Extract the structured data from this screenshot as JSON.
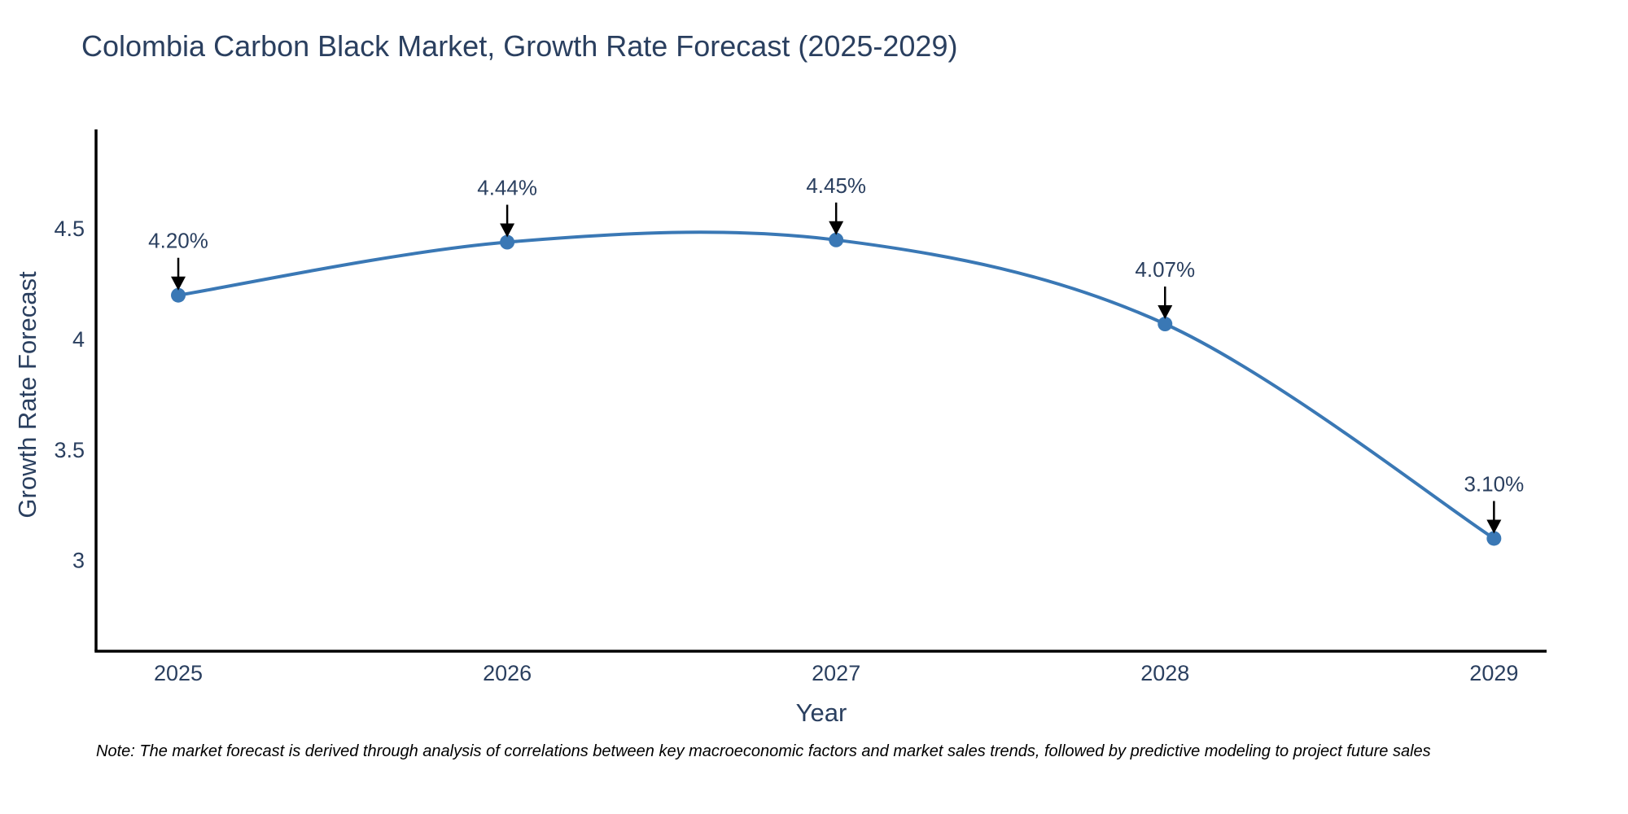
{
  "chart_data": {
    "type": "line",
    "title": "Colombia Carbon Black Market, Growth Rate Forecast (2025-2029)",
    "xlabel": "Year",
    "ylabel": "Growth Rate Forecast",
    "x": [
      2025,
      2026,
      2027,
      2028,
      2029
    ],
    "y": [
      4.2,
      4.44,
      4.45,
      4.07,
      3.1
    ],
    "point_labels": [
      "4.20%",
      "4.44%",
      "4.45%",
      "4.07%",
      "3.10%"
    ],
    "xticks": [
      "2025",
      "2026",
      "2027",
      "2028",
      "2029"
    ],
    "yticks": [
      3,
      3.5,
      4,
      4.5
    ],
    "xlim": [
      2024.75,
      2029.16
    ],
    "ylim": [
      2.59,
      4.95
    ],
    "line_shape": "spline",
    "grid": false,
    "legend": "none",
    "line_color": "#3a78b5",
    "marker_color": "#3a78b5",
    "axis_line_color": "#000000",
    "text_color": "#2a3f5f",
    "annotation_arrow_color": "#000000",
    "note": "Note: The market forecast is derived through analysis of correlations between key macroeconomic factors and market sales trends, followed by predictive modeling to project future sales"
  }
}
